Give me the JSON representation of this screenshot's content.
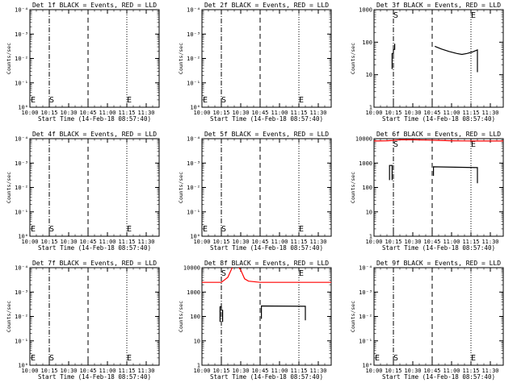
{
  "x_tick_labels": [
    "10:00",
    "10:15",
    "10:30",
    "10:45",
    "11:00",
    "11:15",
    "11:30"
  ],
  "x_axis_label": "Start Time (14-Feb-18 08:57:40)",
  "y_axis_label": "Counts/sec",
  "marker_s": "S",
  "marker_e": "E",
  "chart_data": [
    {
      "type": "line",
      "title": "Det 1f BLACK = Events, RED = LLD",
      "xlim_minutes": [
        0,
        100
      ],
      "ylim": [
        1,
        0.0001
      ],
      "y_tick_labels": [
        "10⁰",
        "10⁻¹",
        "10⁻²",
        "10⁻³",
        "10⁻⁴"
      ],
      "vlines": {
        "dashdot": 15,
        "dashed": 45,
        "dotted": 75
      },
      "series": []
    },
    {
      "type": "line",
      "title": "Det 2f BLACK = Events, RED = LLD",
      "xlim_minutes": [
        0,
        100
      ],
      "ylim": [
        1,
        0.0001
      ],
      "y_tick_labels": [
        "10⁰",
        "10⁻¹",
        "10⁻²",
        "10⁻³",
        "10⁻⁴"
      ],
      "vlines": {
        "dashdot": 15,
        "dashed": 45,
        "dotted": 75
      },
      "series": []
    },
    {
      "type": "line",
      "title": "Det 3f BLACK = Events, RED = LLD",
      "xlim_minutes": [
        0,
        100
      ],
      "ylim": [
        1,
        1000
      ],
      "y_tick_labels": [
        "1",
        "10",
        "100",
        "1000"
      ],
      "vlines": {
        "dashdot": 15,
        "dashed": 45,
        "dotted": 75
      },
      "series": [
        {
          "color": "#000000",
          "points": [
            [
              14,
              15
            ],
            [
              14,
              45
            ],
            [
              15,
              45
            ],
            [
              15,
              60
            ],
            [
              16,
              60
            ],
            [
              16,
              90
            ]
          ]
        },
        {
          "color": "#000000",
          "points": [
            [
              47,
              75
            ],
            [
              52,
              62
            ],
            [
              58,
              52
            ],
            [
              64,
              45
            ],
            [
              68,
              42
            ],
            [
              72,
              45
            ],
            [
              76,
              50
            ],
            [
              80,
              58
            ],
            [
              80,
              12
            ]
          ]
        }
      ]
    },
    {
      "type": "line",
      "title": "Det 4f BLACK = Events, RED = LLD",
      "xlim_minutes": [
        0,
        100
      ],
      "ylim": [
        1,
        0.0001
      ],
      "y_tick_labels": [
        "10⁰",
        "10⁻¹",
        "10⁻²",
        "10⁻³",
        "10⁻⁴"
      ],
      "vlines": {
        "dashdot": 15,
        "dashed": 45,
        "dotted": 75
      },
      "series": []
    },
    {
      "type": "line",
      "title": "Det 5f BLACK = Events, RED = LLD",
      "xlim_minutes": [
        0,
        100
      ],
      "ylim": [
        1,
        0.0001
      ],
      "y_tick_labels": [
        "10⁰",
        "10⁻¹",
        "10⁻²",
        "10⁻³",
        "10⁻⁴"
      ],
      "vlines": {
        "dashdot": 15,
        "dashed": 45,
        "dotted": 75
      },
      "series": []
    },
    {
      "type": "line",
      "title": "Det 6f BLACK = Events, RED = LLD",
      "xlim_minutes": [
        0,
        100
      ],
      "ylim": [
        1,
        10000
      ],
      "y_tick_labels": [
        "1",
        "10",
        "100",
        "1000",
        "10000"
      ],
      "vlines": {
        "dashdot": 15,
        "dashed": 45,
        "dotted": 75
      },
      "series": [
        {
          "color": "#ff0000",
          "points": [
            [
              0,
              8000
            ],
            [
              10,
              8200
            ],
            [
              15,
              8500
            ],
            [
              20,
              9000
            ],
            [
              30,
              9000
            ],
            [
              40,
              8800
            ],
            [
              50,
              8500
            ],
            [
              60,
              8200
            ],
            [
              70,
              8100
            ],
            [
              80,
              8000
            ],
            [
              90,
              8000
            ],
            [
              100,
              8000
            ]
          ]
        },
        {
          "color": "#000000",
          "points": [
            [
              12,
              200
            ],
            [
              12,
              800
            ],
            [
              14,
              800
            ],
            [
              14,
              200
            ]
          ]
        },
        {
          "color": "#000000",
          "points": [
            [
              46,
              300
            ],
            [
              46,
              700
            ],
            [
              80,
              650
            ],
            [
              80,
              150
            ]
          ]
        }
      ]
    },
    {
      "type": "line",
      "title": "Det 7f BLACK = Events, RED = LLD",
      "xlim_minutes": [
        0,
        100
      ],
      "ylim": [
        1,
        0.0001
      ],
      "y_tick_labels": [
        "10⁰",
        "10⁻¹",
        "10⁻²",
        "10⁻³",
        "10⁻⁴"
      ],
      "vlines": {
        "dashdot": 15,
        "dashed": 45,
        "dotted": 75
      },
      "series": []
    },
    {
      "type": "line",
      "title": "Det 8f BLACK = Events, RED = LLD",
      "xlim_minutes": [
        0,
        100
      ],
      "ylim": [
        1,
        10000
      ],
      "y_tick_labels": [
        "1",
        "10",
        "100",
        "1000",
        "10000"
      ],
      "vlines": {
        "dashdot": 15,
        "dashed": 45,
        "dotted": 75
      },
      "series": [
        {
          "color": "#ff0000",
          "points": [
            [
              0,
              2500
            ],
            [
              15,
              2500
            ],
            [
              20,
              4000
            ],
            [
              23,
              9000
            ],
            [
              26,
              15000
            ],
            [
              30,
              8000
            ],
            [
              33,
              3500
            ],
            [
              36,
              2800
            ],
            [
              45,
              2500
            ],
            [
              60,
              2500
            ],
            [
              80,
              2500
            ],
            [
              100,
              2500
            ]
          ]
        },
        {
          "color": "#000000",
          "points": [
            [
              14,
              60
            ],
            [
              14,
              250
            ],
            [
              15,
              250
            ],
            [
              15,
              180
            ],
            [
              16,
              180
            ],
            [
              16,
              60
            ]
          ]
        },
        {
          "color": "#000000",
          "points": [
            [
              46,
              80
            ],
            [
              46,
              270
            ],
            [
              80,
              260
            ],
            [
              80,
              70
            ]
          ]
        }
      ]
    },
    {
      "type": "line",
      "title": "Det 9f BLACK = Events, RED = LLD",
      "xlim_minutes": [
        0,
        100
      ],
      "ylim": [
        1,
        0.0001
      ],
      "y_tick_labels": [
        "10⁰",
        "10⁻¹",
        "10⁻²",
        "10⁻³",
        "10⁻⁴"
      ],
      "vlines": {
        "dashdot": 15,
        "dashed": 45,
        "dotted": 75
      },
      "series": []
    }
  ]
}
